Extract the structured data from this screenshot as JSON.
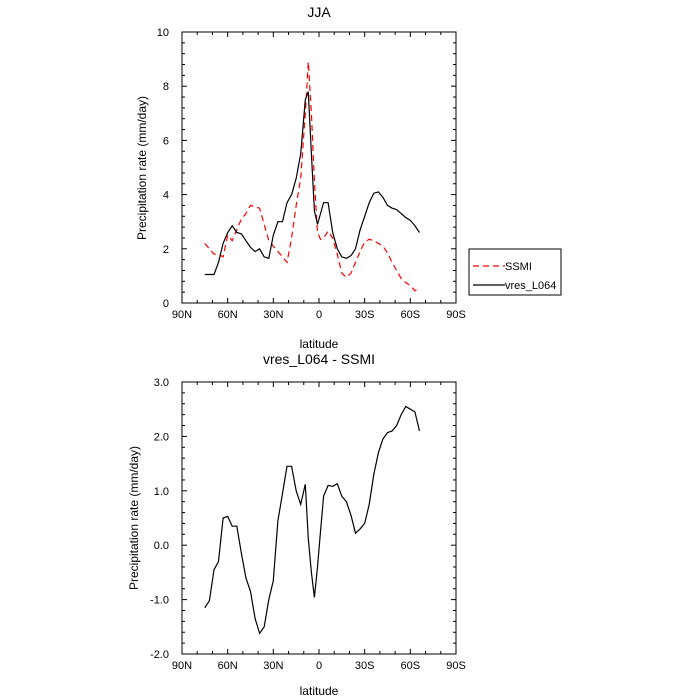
{
  "colors": {
    "ssmi": "#ff0000",
    "model": "#000000"
  },
  "chart_data": [
    {
      "type": "line",
      "title": "JJA",
      "xlabel": "latitude",
      "ylabel": "Precipitation rate (mm/day)",
      "xlim": [
        90,
        -90
      ],
      "ylim": [
        0,
        10
      ],
      "xticks": [
        90,
        60,
        30,
        0,
        -30,
        -60,
        -90
      ],
      "xtick_labels": [
        "90N",
        "60N",
        "30N",
        "0",
        "30S",
        "60S",
        "90S"
      ],
      "yticks": [
        0,
        2,
        4,
        6,
        8,
        10
      ],
      "ytick_labels": [
        "0",
        "2",
        "4",
        "6",
        "8",
        "10"
      ],
      "legend": {
        "placement": "right",
        "entries": [
          "SSMI",
          "vres_L064"
        ]
      },
      "series": [
        {
          "name": "SSMI",
          "style": "dashed",
          "x": [
            75,
            72,
            69,
            66,
            63,
            60,
            57,
            54,
            51,
            48,
            45,
            42,
            39,
            36,
            33,
            30,
            27,
            24,
            21,
            18,
            15,
            12,
            9,
            7,
            5,
            3,
            1,
            -1,
            -3,
            -6,
            -9,
            -12,
            -15,
            -18,
            -21,
            -24,
            -27,
            -30,
            -33,
            -36,
            -39,
            -42,
            -45,
            -48,
            -51,
            -54,
            -57,
            -60,
            -63,
            -66
          ],
          "y": [
            2.2,
            2.0,
            1.8,
            1.8,
            1.7,
            2.5,
            2.3,
            2.7,
            3.1,
            3.3,
            3.6,
            3.55,
            3.5,
            2.9,
            2.3,
            2.1,
            1.9,
            1.7,
            1.5,
            2.4,
            3.6,
            4.6,
            7.0,
            8.9,
            7.0,
            4.5,
            2.6,
            2.35,
            2.4,
            2.65,
            2.4,
            1.8,
            1.1,
            0.95,
            1.1,
            1.5,
            1.9,
            2.25,
            2.35,
            2.3,
            2.2,
            2.1,
            1.85,
            1.5,
            1.2,
            0.9,
            0.75,
            0.65,
            0.45,
            0.55
          ]
        },
        {
          "name": "vres_L064",
          "style": "solid",
          "x": [
            75,
            72,
            69,
            66,
            63,
            60,
            57,
            54,
            51,
            48,
            45,
            42,
            39,
            36,
            33,
            30,
            27,
            24,
            21,
            18,
            15,
            12,
            9,
            7,
            5,
            3,
            1,
            -1,
            -3,
            -6,
            -9,
            -12,
            -15,
            -18,
            -21,
            -24,
            -27,
            -30,
            -33,
            -36,
            -39,
            -42,
            -45,
            -48,
            -51,
            -54,
            -57,
            -60,
            -63,
            -66
          ],
          "y": [
            1.05,
            1.05,
            1.05,
            1.5,
            2.2,
            2.6,
            2.85,
            2.6,
            2.55,
            2.3,
            2.05,
            1.9,
            2.0,
            1.7,
            1.65,
            2.5,
            3.0,
            3.0,
            3.7,
            4.0,
            4.6,
            5.5,
            7.5,
            7.8,
            5.5,
            3.4,
            2.9,
            3.3,
            3.7,
            3.7,
            2.6,
            2.0,
            1.7,
            1.65,
            1.75,
            2.0,
            2.7,
            3.2,
            3.7,
            4.05,
            4.1,
            3.9,
            3.6,
            3.5,
            3.45,
            3.3,
            3.15,
            3.05,
            2.85,
            2.6
          ]
        }
      ]
    },
    {
      "type": "line",
      "title": "vres_L064 - SSMI",
      "xlabel": "latitude",
      "ylabel": "Precipitation rate (mm/day)",
      "xlim": [
        90,
        -90
      ],
      "ylim": [
        -2,
        3
      ],
      "xticks": [
        90,
        60,
        30,
        0,
        -30,
        -60,
        -90
      ],
      "xtick_labels": [
        "90N",
        "60N",
        "30N",
        "0",
        "30S",
        "60S",
        "90S"
      ],
      "yticks": [
        -2,
        -1,
        0,
        1,
        2,
        3
      ],
      "ytick_labels": [
        "-2.0",
        "-1.0",
        "0.0",
        "1.0",
        "2.0",
        "3.0"
      ],
      "series": [
        {
          "style": "solid",
          "x": [
            75,
            72,
            69,
            66,
            63,
            60,
            57,
            54,
            51,
            48,
            45,
            42,
            39,
            36,
            33,
            30,
            27,
            24,
            21,
            18,
            15,
            12,
            9,
            7,
            5,
            3,
            1,
            -1,
            -3,
            -6,
            -9,
            -12,
            -15,
            -18,
            -21,
            -24,
            -27,
            -30,
            -33,
            -36,
            -39,
            -42,
            -45,
            -48,
            -51,
            -54,
            -57,
            -60,
            -63,
            -66
          ],
          "y": [
            -1.15,
            -1.02,
            -0.45,
            -0.3,
            0.5,
            0.53,
            0.35,
            0.35,
            -0.15,
            -0.6,
            -0.85,
            -1.35,
            -1.62,
            -1.5,
            -1.0,
            -0.65,
            0.45,
            0.95,
            1.45,
            1.45,
            1.0,
            0.75,
            1.12,
            0.12,
            -0.5,
            -0.96,
            -0.4,
            0.25,
            0.9,
            1.1,
            1.08,
            1.13,
            0.9,
            0.8,
            0.55,
            0.22,
            0.3,
            0.4,
            0.75,
            1.3,
            1.7,
            1.95,
            2.07,
            2.1,
            2.2,
            2.4,
            2.55,
            2.5,
            2.45,
            2.1
          ]
        }
      ]
    }
  ]
}
